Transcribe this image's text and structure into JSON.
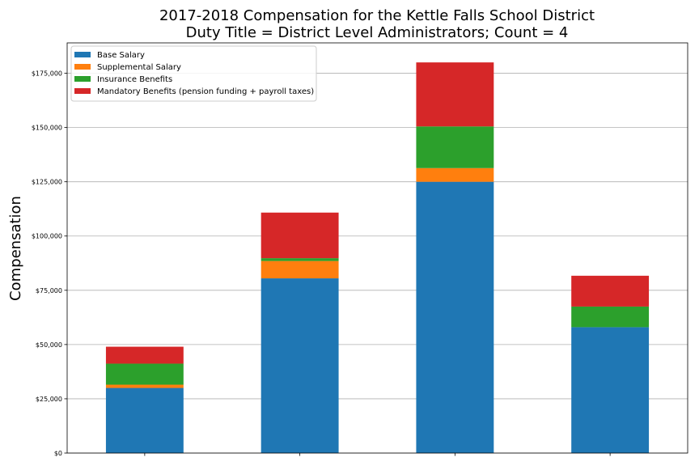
{
  "chart_data": {
    "type": "bar",
    "stacked": true,
    "title": "2017-2018 Compensation for the Kettle Falls School District",
    "subtitle": "Duty Title = District Level Administrators; Count = 4",
    "xlabel": "",
    "ylabel": "Compensation",
    "ylim": [
      0,
      189000
    ],
    "yticks": [
      0,
      25000,
      50000,
      75000,
      100000,
      125000,
      150000,
      175000
    ],
    "ytick_labels": [
      "$0",
      "$25,000",
      "$50,000",
      "$75,000",
      "$100,000",
      "$125,000",
      "$150,000",
      "$175,000"
    ],
    "categories": [
      "",
      "",
      "",
      ""
    ],
    "grid": "horizontal",
    "legend_position": "top-left",
    "series": [
      {
        "name": "Base Salary",
        "color": "#1f77b4",
        "values": [
          30000,
          80500,
          125000,
          58000
        ]
      },
      {
        "name": "Supplemental Salary",
        "color": "#ff7f0e",
        "values": [
          1500,
          8000,
          6300,
          0
        ]
      },
      {
        "name": "Insurance Benefits",
        "color": "#2ca02c",
        "values": [
          9700,
          1300,
          19200,
          9500
        ]
      },
      {
        "name": "Mandatory Benefits (pension funding + payroll taxes)",
        "color": "#d62728",
        "values": [
          7800,
          21000,
          29500,
          14200
        ]
      }
    ]
  }
}
